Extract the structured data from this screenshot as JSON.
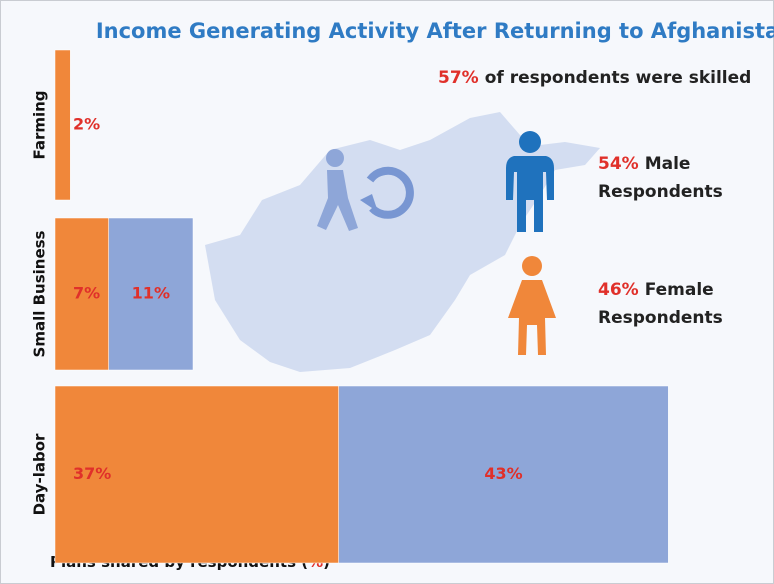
{
  "chart_data": {
    "type": "stacked-barh",
    "title": "Income Generating Activity After Returning to Afghanistan",
    "categories": [
      "Farming",
      "Small Business",
      "Day-labor"
    ],
    "series": [
      {
        "color": "#f0873a",
        "values": [
          2,
          7,
          37
        ],
        "value_labels": [
          "2%",
          "7%",
          "37%"
        ]
      },
      {
        "color": "#8ea6d8",
        "values": [
          null,
          11,
          43
        ],
        "value_labels": [
          null,
          "11%",
          "43%"
        ]
      }
    ],
    "xlim": [
      0,
      90
    ],
    "xlabel": [
      "Plans shared by respondents (",
      "%",
      ")"
    ],
    "annotations": [
      {
        "highlight": "57%",
        "lines": [
          "of respondents were skilled"
        ]
      },
      {
        "highlight": "54%",
        "lines": [
          "Male",
          "Respondents"
        ]
      },
      {
        "highlight": "46%",
        "lines": [
          "Female",
          "Respondents"
        ]
      }
    ]
  }
}
